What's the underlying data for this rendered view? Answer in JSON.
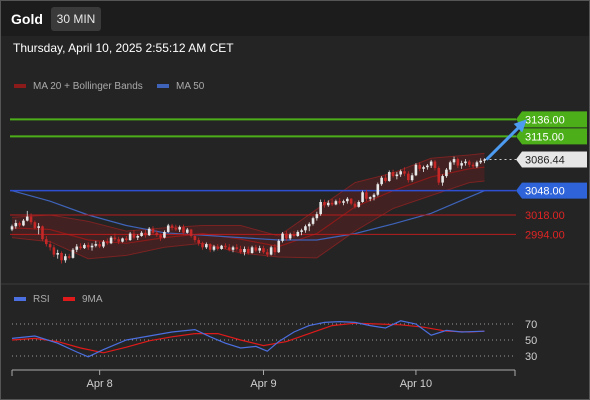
{
  "header": {
    "title": "Gold",
    "timeframe": "30 MIN",
    "datetime": "Thursday, April 10, 2025 2:55:12 AM CET"
  },
  "legend_price": [
    {
      "label": "MA 20 + Bollinger Bands",
      "color": "#8b1a1a"
    },
    {
      "label": "MA 50",
      "color": "#3e63b8"
    }
  ],
  "legend_rsi": [
    {
      "label": "RSI",
      "color": "#4b6fe0"
    },
    {
      "label": "9MA",
      "color": "#e01a1a"
    }
  ],
  "colors": {
    "bull": "#e8e8e8",
    "bear": "#c62828",
    "resistance": "#4caf1a",
    "support": "#2e4fd1",
    "minor_support": "#c62828"
  },
  "chart_data": [
    {
      "type": "candlestick",
      "title": "Gold",
      "xlabel": "",
      "ylabel": "",
      "xlim": [
        0,
        132
      ],
      "ylim": [
        2950,
        3160
      ],
      "x_ticks": [
        {
          "x": 23,
          "label": "Apr 8"
        },
        {
          "x": 66,
          "label": "Apr 9"
        },
        {
          "x": 106,
          "label": "Apr 10"
        }
      ],
      "ohlc": [
        [
          3000,
          3006,
          2998,
          3004
        ],
        [
          3004,
          3012,
          3001,
          3008
        ],
        [
          3008,
          3010,
          3003,
          3005
        ],
        [
          3005,
          3013,
          3004,
          3011
        ],
        [
          3011,
          3023,
          3010,
          3016
        ],
        [
          3016,
          3020,
          3006,
          3009
        ],
        [
          3009,
          3011,
          3000,
          3002
        ],
        [
          3002,
          3008,
          2994,
          3004
        ],
        [
          3004,
          3005,
          2986,
          2988
        ],
        [
          2988,
          2992,
          2979,
          2982
        ],
        [
          2982,
          2986,
          2974,
          2978
        ],
        [
          2978,
          2981,
          2966,
          2969
        ],
        [
          2969,
          2975,
          2964,
          2971
        ],
        [
          2971,
          2973,
          2958,
          2962
        ],
        [
          2962,
          2970,
          2959,
          2967
        ],
        [
          2967,
          2970,
          2963,
          2965
        ],
        [
          2965,
          2977,
          2964,
          2975
        ],
        [
          2975,
          2982,
          2972,
          2979
        ],
        [
          2979,
          2983,
          2975,
          2977
        ],
        [
          2977,
          2983,
          2976,
          2981
        ],
        [
          2981,
          2984,
          2975,
          2978
        ],
        [
          2978,
          2983,
          2974,
          2980
        ],
        [
          2980,
          2986,
          2978,
          2982
        ],
        [
          2982,
          2985,
          2977,
          2979
        ],
        [
          2979,
          2987,
          2977,
          2985
        ],
        [
          2985,
          2989,
          2981,
          2983
        ],
        [
          2983,
          2992,
          2982,
          2990
        ],
        [
          2990,
          2995,
          2986,
          2988
        ],
        [
          2988,
          2991,
          2982,
          2985
        ],
        [
          2985,
          2990,
          2984,
          2989
        ],
        [
          2989,
          2992,
          2985,
          2987
        ],
        [
          2987,
          2997,
          2986,
          2995
        ],
        [
          2995,
          2999,
          2988,
          2990
        ],
        [
          2990,
          2994,
          2987,
          2992
        ],
        [
          2992,
          2998,
          2991,
          2996
        ],
        [
          2996,
          3000,
          2990,
          2993
        ],
        [
          2993,
          3003,
          2992,
          3001
        ],
        [
          3001,
          3004,
          2994,
          2996
        ],
        [
          2996,
          2999,
          2991,
          2993
        ],
        [
          2993,
          2995,
          2986,
          2990
        ],
        [
          2990,
          2999,
          2989,
          2997
        ],
        [
          2997,
          3007,
          2996,
          3005
        ],
        [
          3005,
          3007,
          2999,
          3002
        ],
        [
          3002,
          3006,
          2998,
          3000
        ],
        [
          3000,
          3005,
          2997,
          3003
        ],
        [
          3003,
          3006,
          2994,
          2996
        ],
        [
          2996,
          3002,
          2995,
          3000
        ],
        [
          3000,
          3001,
          2990,
          2992
        ],
        [
          2992,
          2993,
          2984,
          2987
        ],
        [
          2987,
          2990,
          2980,
          2983
        ],
        [
          2983,
          2985,
          2975,
          2978
        ],
        [
          2978,
          2984,
          2976,
          2982
        ],
        [
          2982,
          2983,
          2972,
          2975
        ],
        [
          2975,
          2981,
          2973,
          2979
        ],
        [
          2979,
          2982,
          2974,
          2976
        ],
        [
          2976,
          2981,
          2975,
          2980
        ],
        [
          2980,
          2983,
          2976,
          2978
        ],
        [
          2978,
          2982,
          2973,
          2975
        ],
        [
          2975,
          2980,
          2972,
          2978
        ],
        [
          2978,
          2982,
          2974,
          2976
        ],
        [
          2976,
          2980,
          2970,
          2972
        ],
        [
          2972,
          2979,
          2968,
          2976
        ],
        [
          2976,
          2979,
          2969,
          2971
        ],
        [
          2971,
          2980,
          2970,
          2978
        ],
        [
          2978,
          2981,
          2972,
          2974
        ],
        [
          2974,
          2980,
          2971,
          2977
        ],
        [
          2977,
          2980,
          2970,
          2972
        ],
        [
          2972,
          2976,
          2966,
          2969
        ],
        [
          2969,
          2980,
          2968,
          2978
        ],
        [
          2978,
          2982,
          2968,
          2972
        ],
        [
          2972,
          2988,
          2971,
          2986
        ],
        [
          2986,
          2997,
          2984,
          2995
        ],
        [
          2995,
          2998,
          2986,
          2989
        ],
        [
          2989,
          2996,
          2987,
          2994
        ],
        [
          2994,
          2998,
          2990,
          2992
        ],
        [
          2992,
          2999,
          2991,
          2997
        ],
        [
          2997,
          3001,
          2993,
          2999
        ],
        [
          2999,
          3006,
          2996,
          3004
        ],
        [
          3004,
          3009,
          2998,
          3007
        ],
        [
          3007,
          3016,
          3005,
          3014
        ],
        [
          3014,
          3022,
          3011,
          3019
        ],
        [
          3019,
          3037,
          3017,
          3034
        ],
        [
          3034,
          3037,
          3027,
          3030
        ],
        [
          3030,
          3036,
          3028,
          3033
        ],
        [
          3033,
          3038,
          3029,
          3031
        ],
        [
          3031,
          3037,
          3030,
          3035
        ],
        [
          3035,
          3039,
          3031,
          3033
        ],
        [
          3033,
          3037,
          3030,
          3035
        ],
        [
          3035,
          3040,
          3032,
          3038
        ],
        [
          3038,
          3039,
          3030,
          3032
        ],
        [
          3032,
          3035,
          3026,
          3028
        ],
        [
          3028,
          3036,
          3027,
          3034
        ],
        [
          3034,
          3048,
          3033,
          3046
        ],
        [
          3046,
          3049,
          3035,
          3038
        ],
        [
          3038,
          3041,
          3035,
          3040
        ],
        [
          3040,
          3045,
          3036,
          3043
        ],
        [
          3043,
          3058,
          3041,
          3056
        ],
        [
          3056,
          3066,
          3054,
          3064
        ],
        [
          3064,
          3068,
          3058,
          3060
        ],
        [
          3060,
          3073,
          3059,
          3071
        ],
        [
          3071,
          3074,
          3064,
          3066
        ],
        [
          3066,
          3071,
          3062,
          3068
        ],
        [
          3068,
          3074,
          3065,
          3072
        ],
        [
          3072,
          3077,
          3066,
          3069
        ],
        [
          3069,
          3072,
          3058,
          3061
        ],
        [
          3061,
          3070,
          3059,
          3067
        ],
        [
          3067,
          3082,
          3066,
          3080
        ],
        [
          3080,
          3083,
          3072,
          3075
        ],
        [
          3075,
          3079,
          3071,
          3077
        ],
        [
          3077,
          3081,
          3074,
          3079
        ],
        [
          3079,
          3086,
          3076,
          3084
        ],
        [
          3084,
          3086,
          3073,
          3076
        ],
        [
          3076,
          3078,
          3055,
          3058
        ],
        [
          3058,
          3068,
          3054,
          3066
        ],
        [
          3066,
          3076,
          3064,
          3074
        ],
        [
          3074,
          3085,
          3071,
          3083
        ],
        [
          3083,
          3090,
          3080,
          3087
        ],
        [
          3087,
          3089,
          3076,
          3079
        ],
        [
          3079,
          3085,
          3075,
          3082
        ],
        [
          3082,
          3087,
          3079,
          3084
        ],
        [
          3084,
          3086,
          3077,
          3080
        ],
        [
          3080,
          3083,
          3076,
          3078
        ],
        [
          3078,
          3085,
          3076,
          3083
        ],
        [
          3083,
          3088,
          3081,
          3085
        ],
        [
          3085,
          3088,
          3082,
          3086.44
        ]
      ],
      "series": [
        {
          "name": "MA 20 + Bollinger Bands",
          "x": [
            0,
            10,
            20,
            30,
            40,
            50,
            60,
            70,
            80,
            90,
            100,
            110,
            120,
            124
          ],
          "values": [
            3002,
            3000,
            2987,
            2983,
            2990,
            2995,
            2988,
            2979,
            2995,
            3028,
            3048,
            3065,
            3075,
            3077
          ],
          "upper": [
            3015,
            3018,
            3010,
            2998,
            3002,
            3005,
            3005,
            2992,
            3025,
            3058,
            3070,
            3088,
            3092,
            3094
          ],
          "lower": [
            2990,
            2985,
            2964,
            2968,
            2978,
            2983,
            2971,
            2966,
            2965,
            2998,
            3026,
            3042,
            3058,
            3060
          ]
        },
        {
          "name": "MA 50",
          "x": [
            0,
            10,
            20,
            30,
            40,
            50,
            60,
            70,
            80,
            90,
            100,
            110,
            120,
            124
          ],
          "values": [
            3048,
            3035,
            3018,
            3005,
            2996,
            2993,
            2990,
            2987,
            2987,
            2995,
            3007,
            3020,
            3040,
            3048
          ]
        }
      ],
      "levels": [
        {
          "value": 3136.0,
          "label": "3136.00",
          "kind": "resistance"
        },
        {
          "value": 3115.0,
          "label": "3115.00",
          "kind": "resistance"
        },
        {
          "value": 3086.44,
          "label": "3086.44",
          "kind": "current"
        },
        {
          "value": 3048.0,
          "label": "3048.00",
          "kind": "support"
        },
        {
          "value": 3018.0,
          "label": "3018.00",
          "kind": "minor-support"
        },
        {
          "value": 2994.0,
          "label": "2994.00",
          "kind": "minor-support"
        }
      ],
      "projection": {
        "from": [
          124,
          3086.44
        ],
        "to": [
          134,
          3131
        ]
      }
    },
    {
      "type": "line",
      "title": "",
      "xlabel": "",
      "ylabel": "",
      "ylim": [
        15,
        85
      ],
      "y_ticks": [
        {
          "value": 70,
          "label": "70"
        },
        {
          "value": 50,
          "label": "50"
        },
        {
          "value": 30,
          "label": "30"
        }
      ],
      "series": [
        {
          "name": "RSI",
          "x": [
            0,
            6,
            12,
            17,
            20,
            24,
            30,
            36,
            42,
            48,
            52,
            56,
            60,
            64,
            67,
            70,
            74,
            78,
            82,
            86,
            90,
            94,
            98,
            102,
            106,
            110,
            114,
            118,
            124
          ],
          "values": [
            52,
            55,
            46,
            35,
            29,
            38,
            50,
            55,
            60,
            63,
            54,
            46,
            40,
            42,
            36,
            48,
            60,
            68,
            72,
            73,
            72,
            68,
            65,
            74,
            70,
            56,
            62,
            60,
            61
          ]
        },
        {
          "name": "9MA",
          "x": [
            0,
            6,
            12,
            18,
            24,
            30,
            36,
            42,
            48,
            54,
            60,
            66,
            72,
            78,
            84,
            90,
            96,
            102,
            108,
            114,
            120,
            124
          ],
          "values": [
            50,
            52,
            48,
            40,
            34,
            41,
            49,
            54,
            58,
            58,
            50,
            43,
            48,
            58,
            68,
            71,
            70,
            69,
            66,
            61,
            60,
            61
          ]
        }
      ]
    }
  ]
}
